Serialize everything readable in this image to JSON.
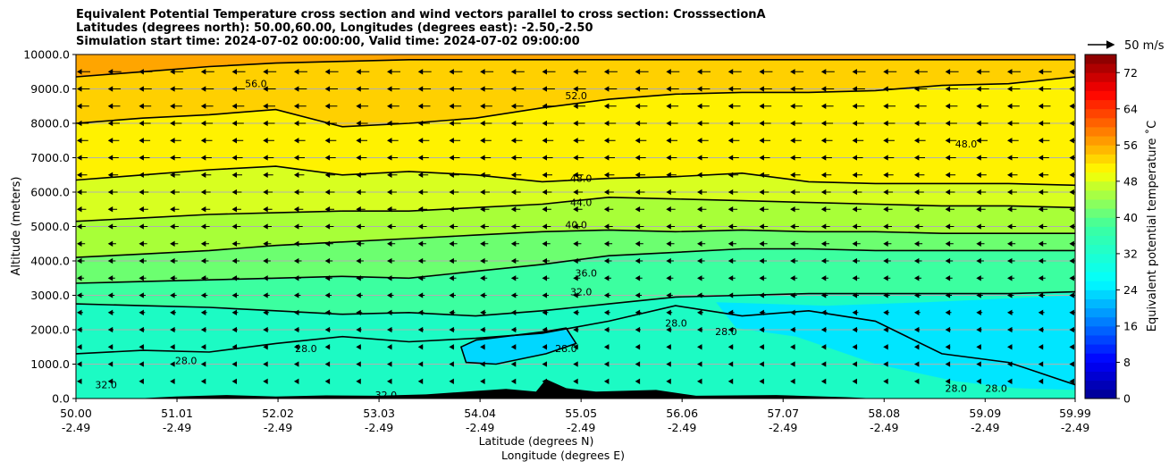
{
  "title_lines": [
    "Equivalent Potential Temperature cross section and wind vectors parallel to cross section: CrosssectionA",
    "Latitudes (degrees north): 50.00,60.00, Longitudes (degrees east): -2.50,-2.50",
    "Simulation start time: 2024-07-02 00:00:00, Valid time: 2024-07-02 09:00:00"
  ],
  "chart_data": {
    "type": "heatmap",
    "ylabel": "Altitude (meters)",
    "xlabel_line1": "Latitude (degrees N)",
    "xlabel_line2": "Longitude (degrees E)",
    "ylim": [
      0,
      10000
    ],
    "y_ticks": [
      "0.0",
      "1000.0",
      "2000.0",
      "3000.0",
      "4000.0",
      "5000.0",
      "6000.0",
      "7000.0",
      "8000.0",
      "9000.0",
      "10000.0"
    ],
    "x_ticks": [
      {
        "lat": "50.00",
        "lon": "-2.49"
      },
      {
        "lat": "51.01",
        "lon": "-2.49"
      },
      {
        "lat": "52.02",
        "lon": "-2.49"
      },
      {
        "lat": "53.03",
        "lon": "-2.49"
      },
      {
        "lat": "54.04",
        "lon": "-2.49"
      },
      {
        "lat": "55.05",
        "lon": "-2.49"
      },
      {
        "lat": "56.06",
        "lon": "-2.49"
      },
      {
        "lat": "57.07",
        "lon": "-2.49"
      },
      {
        "lat": "58.08",
        "lon": "-2.49"
      },
      {
        "lat": "59.09",
        "lon": "-2.49"
      },
      {
        "lat": "59.99",
        "lon": "-2.49"
      }
    ],
    "grid": "horizontal",
    "colorbar": {
      "label": "Equivalent potential temperature ˚C",
      "range": [
        0,
        76
      ],
      "ticks": [
        "0",
        "8",
        "16",
        "24",
        "32",
        "40",
        "48",
        "56",
        "64",
        "72"
      ]
    },
    "quiver_key": "50 m/s",
    "contours": [
      {
        "level": 28,
        "label": "28.0",
        "heights": [
          1300,
          1400,
          1350,
          1600,
          1800,
          1650,
          1750,
          1900,
          2250,
          2700,
          2400,
          2550,
          2250,
          1300,
          1050,
          400
        ]
      },
      {
        "level": 32,
        "label": "32.0",
        "heights": [
          2750,
          2700,
          2650,
          2550,
          2450,
          2500,
          2400,
          2550,
          2750,
          2950,
          3000,
          3050,
          3050,
          3050,
          3050,
          3100
        ]
      },
      {
        "level": 36,
        "label": "36.0",
        "heights": [
          3350,
          3400,
          3450,
          3500,
          3550,
          3500,
          3700,
          3900,
          4150,
          4250,
          4350,
          4350,
          4300,
          4300,
          4300,
          4300
        ]
      },
      {
        "level": 40,
        "label": "40.0",
        "heights": [
          4100,
          4200,
          4300,
          4450,
          4550,
          4650,
          4750,
          4850,
          4900,
          4850,
          4900,
          4850,
          4850,
          4800,
          4800,
          4800
        ]
      },
      {
        "level": 44,
        "label": "44.0",
        "heights": [
          5150,
          5250,
          5350,
          5400,
          5450,
          5450,
          5550,
          5650,
          5850,
          5800,
          5750,
          5700,
          5650,
          5600,
          5600,
          5550
        ]
      },
      {
        "level": 48,
        "label": "48.0",
        "heights": [
          6350,
          6500,
          6650,
          6750,
          6500,
          6600,
          6500,
          6300,
          6400,
          6450,
          6550,
          6300,
          6250,
          6250,
          6250,
          6200
        ]
      },
      {
        "level": 52,
        "label": "52.0",
        "heights": [
          8000,
          8150,
          8250,
          8400,
          7900,
          8000,
          8150,
          8450,
          8700,
          8850,
          8900,
          8900,
          8950,
          9100,
          9150,
          9350
        ]
      },
      {
        "level": 56,
        "label": "56.0",
        "heights": [
          9350,
          9500,
          9650,
          9750,
          9800,
          9850,
          9850,
          9850,
          9850,
          9850,
          9850,
          9850,
          9850,
          9850,
          9850,
          9850
        ]
      }
    ],
    "contour_labels": [
      {
        "text": "56.0",
        "lat": 51.8,
        "alt": 9150
      },
      {
        "text": "52.0",
        "lat": 55.0,
        "alt": 8800
      },
      {
        "text": "48.0",
        "lat": 55.05,
        "alt": 6400
      },
      {
        "text": "48.0",
        "lat": 58.9,
        "alt": 7400
      },
      {
        "text": "44.0",
        "lat": 55.05,
        "alt": 5700
      },
      {
        "text": "40.0",
        "lat": 55.0,
        "alt": 5050
      },
      {
        "text": "36.0",
        "lat": 55.1,
        "alt": 3650
      },
      {
        "text": "32.0",
        "lat": 55.05,
        "alt": 3100
      },
      {
        "text": "28.0",
        "lat": 56.0,
        "alt": 2200
      },
      {
        "text": "28.0",
        "lat": 56.5,
        "alt": 1950
      },
      {
        "text": "28.0",
        "lat": 54.9,
        "alt": 1450
      },
      {
        "text": "28.0",
        "lat": 52.3,
        "alt": 1450
      },
      {
        "text": "28.0",
        "lat": 51.1,
        "alt": 1100
      },
      {
        "text": "28.0",
        "lat": 58.8,
        "alt": 300
      },
      {
        "text": "28.0",
        "lat": 59.2,
        "alt": 300
      },
      {
        "text": "32.0",
        "lat": 53.1,
        "alt": 100
      },
      {
        "text": "32.0",
        "lat": 50.3,
        "alt": 400
      }
    ],
    "fill_bands": [
      {
        "value": 30,
        "color": "#1cfbc4"
      },
      {
        "value": 29,
        "color": "#13fde0"
      },
      {
        "value": 27,
        "color": "#00e6ff"
      },
      {
        "value": 26,
        "color": "#00d7ff"
      },
      {
        "value": 34,
        "color": "#3cffa0"
      },
      {
        "value": 38,
        "color": "#6cff70"
      },
      {
        "value": 42,
        "color": "#a8ff38"
      },
      {
        "value": 46,
        "color": "#d8ff20"
      },
      {
        "value": 50,
        "color": "#fff200"
      },
      {
        "value": 54,
        "color": "#ffd000"
      },
      {
        "value": 58,
        "color": "#ffa500"
      }
    ]
  }
}
